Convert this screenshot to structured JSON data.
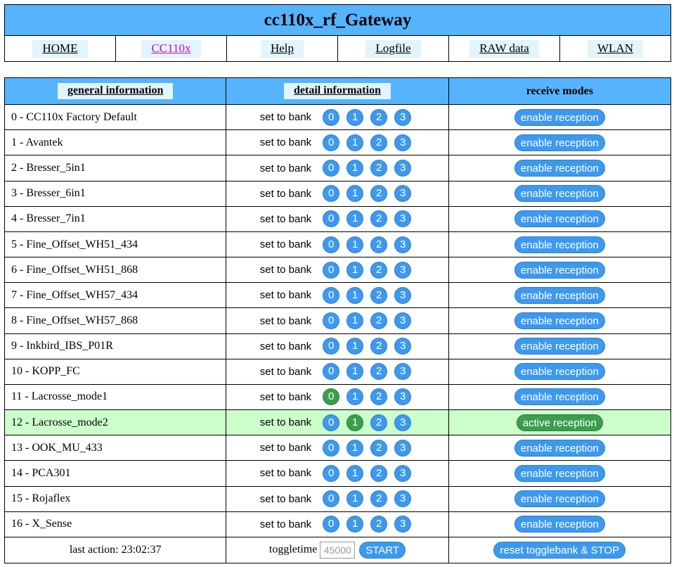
{
  "header": {
    "title": "cc110x_rf_Gateway",
    "nav": [
      {
        "label": "HOME",
        "active": false
      },
      {
        "label": "CC110x",
        "active": true
      },
      {
        "label": "Help",
        "active": false
      },
      {
        "label": "Logfile",
        "active": false
      },
      {
        "label": "RAW data",
        "active": false
      },
      {
        "label": "WLAN",
        "active": false
      }
    ]
  },
  "table": {
    "col_general": "general information",
    "col_detail": "detail information",
    "col_modes": "receive modes",
    "bank_label": "set to bank",
    "bank_numbers": [
      "0",
      "1",
      "2",
      "3"
    ],
    "rows": [
      {
        "name": "0 - CC110x Factory Default",
        "selected_bank": null,
        "mode": "enable reception",
        "active": false
      },
      {
        "name": "1 - Avantek",
        "selected_bank": null,
        "mode": "enable reception",
        "active": false
      },
      {
        "name": "2 - Bresser_5in1",
        "selected_bank": null,
        "mode": "enable reception",
        "active": false
      },
      {
        "name": "3 - Bresser_6in1",
        "selected_bank": null,
        "mode": "enable reception",
        "active": false
      },
      {
        "name": "4 - Bresser_7in1",
        "selected_bank": null,
        "mode": "enable reception",
        "active": false
      },
      {
        "name": "5 - Fine_Offset_WH51_434",
        "selected_bank": null,
        "mode": "enable reception",
        "active": false
      },
      {
        "name": "6 - Fine_Offset_WH51_868",
        "selected_bank": null,
        "mode": "enable reception",
        "active": false
      },
      {
        "name": "7 - Fine_Offset_WH57_434",
        "selected_bank": null,
        "mode": "enable reception",
        "active": false
      },
      {
        "name": "8 - Fine_Offset_WH57_868",
        "selected_bank": null,
        "mode": "enable reception",
        "active": false
      },
      {
        "name": "9 - Inkbird_IBS_P01R",
        "selected_bank": null,
        "mode": "enable reception",
        "active": false
      },
      {
        "name": "10 - KOPP_FC",
        "selected_bank": null,
        "mode": "enable reception",
        "active": false
      },
      {
        "name": "11 - Lacrosse_mode1",
        "selected_bank": 0,
        "mode": "enable reception",
        "active": false
      },
      {
        "name": "12 - Lacrosse_mode2",
        "selected_bank": 1,
        "mode": "active reception",
        "active": true
      },
      {
        "name": "13 - OOK_MU_433",
        "selected_bank": null,
        "mode": "enable reception",
        "active": false
      },
      {
        "name": "14 - PCA301",
        "selected_bank": null,
        "mode": "enable reception",
        "active": false
      },
      {
        "name": "15 - Rojaflex",
        "selected_bank": null,
        "mode": "enable reception",
        "active": false
      },
      {
        "name": "16 - X_Sense",
        "selected_bank": null,
        "mode": "enable reception",
        "active": false
      }
    ]
  },
  "footer": {
    "last_action": "last action: 23:02:37",
    "toggletime_label": "toggletime",
    "toggletime_placeholder": "45000",
    "start_label": "START",
    "reset_label": "reset togglebank & STOP"
  },
  "colors": {
    "header_blue": "#56b4fe",
    "button_blue": "#3d99ee",
    "button_green": "#3a9e4e",
    "active_row": "#ccffcc"
  }
}
